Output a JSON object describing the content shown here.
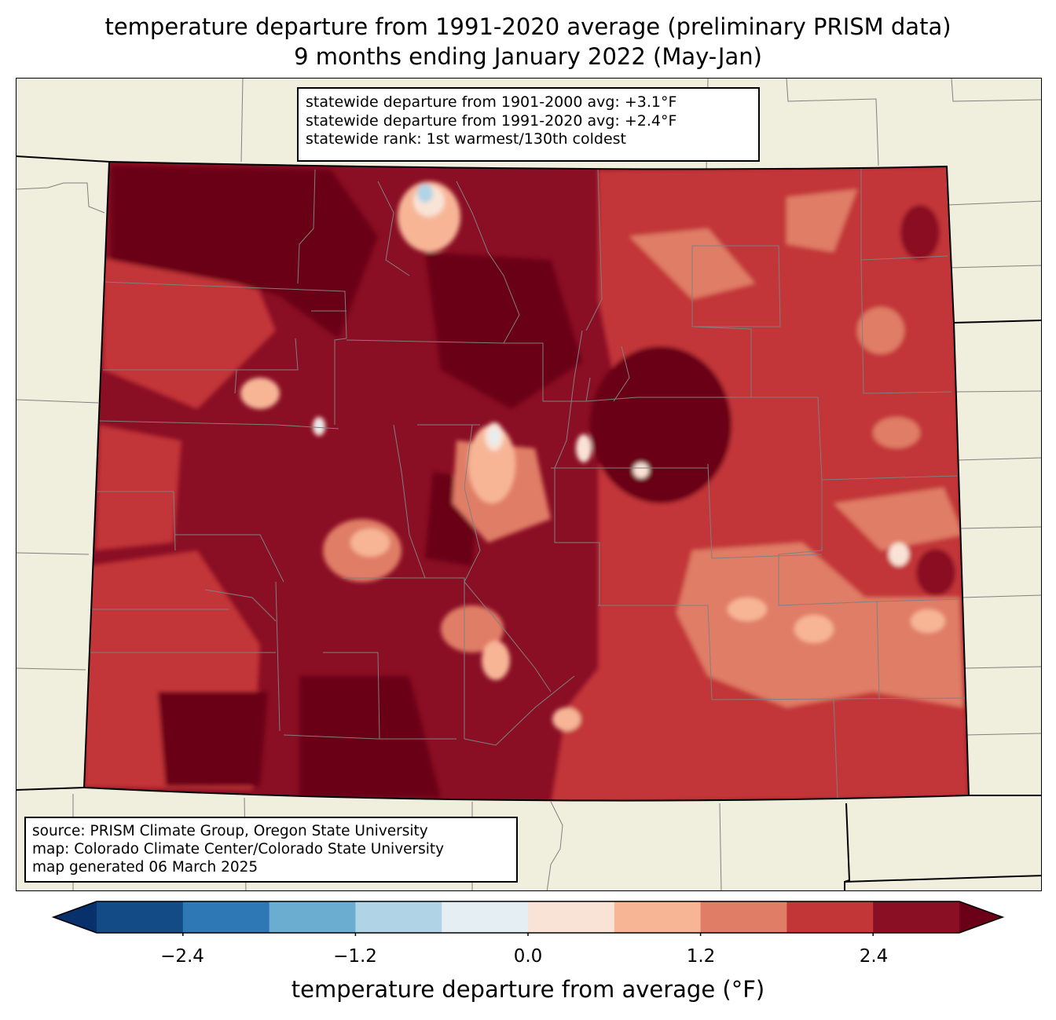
{
  "title": {
    "line1": "temperature departure from 1991-2020 average (preliminary PRISM data)",
    "line2": "9 months ending January 2022 (May-Jan)"
  },
  "stats": {
    "line1": "statewide departure from 1901-2000 avg: +3.1°F",
    "line2": "statewide departure from 1991-2020 avg: +2.4°F",
    "line3": "statewide rank: 1st warmest/130th coldest"
  },
  "source": {
    "line1": "source: PRISM Climate Group, Oregon State University",
    "line2": "map: Colorado Climate Center/Colorado State University",
    "line3": "map generated 06 March 2025"
  },
  "colorbar": {
    "label": "temperature departure from average (°F)",
    "ticks": [
      "−2.4",
      "−1.2",
      "0.0",
      "1.2",
      "2.4"
    ],
    "tick_values": [
      -2.4,
      -1.2,
      0.0,
      1.2,
      2.4
    ],
    "levels": [
      -3.0,
      -2.4,
      -1.8,
      -1.2,
      -0.6,
      0.0,
      0.6,
      1.2,
      1.8,
      2.4,
      3.0
    ],
    "colors": [
      "#134b87",
      "#2f78b6",
      "#6bacd1",
      "#b0d4e6",
      "#e4eef3",
      "#f9e3d6",
      "#f7b596",
      "#e07d66",
      "#c23637",
      "#8a0e24"
    ],
    "under_color": "#08306b",
    "over_color": "#6b0019",
    "extend": "both"
  },
  "map": {
    "background_color": "#f0eedc",
    "boundary_color": "#808080"
  }
}
